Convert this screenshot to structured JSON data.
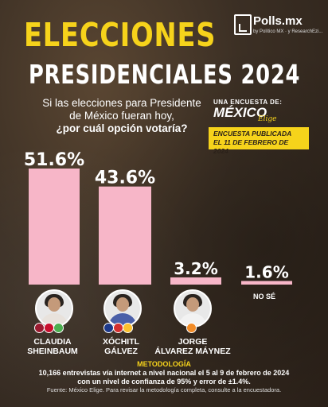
{
  "brand": {
    "name": "Polls.mx",
    "tagline": "by Político MX · y ResearchEzi..."
  },
  "title": {
    "line1": "ELECCIONES",
    "line2": "PRESIDENCIALES 2024"
  },
  "question": {
    "line1": "Si las elecciones para Presidente",
    "line2": "de México fueran hoy,",
    "line3": "¿por cuál opción votaría?"
  },
  "survey": {
    "label": "UNA ENCUESTA DE:",
    "name": "MÉXICO",
    "name2": "Elige",
    "published_line1": "ENCUESTA PUBLICADA",
    "published_line2": "EL 11 DE FEBRERO DE 2024"
  },
  "colors": {
    "bar": "#f7b6c8",
    "accent": "#f6d31b"
  },
  "chart_data": {
    "type": "bar",
    "categories": [
      "CLAUDIA SHEINBAUM",
      "XÓCHITL GÁLVEZ",
      "JORGE ÁLVAREZ MÁYNEZ",
      "NO SÉ"
    ],
    "values": [
      51.6,
      43.6,
      3.2,
      1.6
    ],
    "labels": [
      "51.6%",
      "43.6%",
      "3.2%",
      "1.6%"
    ],
    "ylim": [
      0,
      51.6
    ]
  },
  "candidates": [
    {
      "line1": "CLAUDIA",
      "line2": "SHEINBAUM"
    },
    {
      "line1": "XÓCHITL",
      "line2": "GÁLVEZ"
    },
    {
      "line1": "JORGE",
      "line2": "ÁLVAREZ MÁYNEZ"
    }
  ],
  "no_se": "NO SÉ",
  "methodology": {
    "title": "METODOLOGÍA",
    "line1": "10,166 entrevistas vía internet a nivel nacional el 5 al 9 de febrero de 2024",
    "line2": "con un nivel de confianza de 95% y error de ±1.4%.",
    "source": "Fuente: México Elige. Para revisar la metodología completa, consulte a la encuestadora."
  }
}
